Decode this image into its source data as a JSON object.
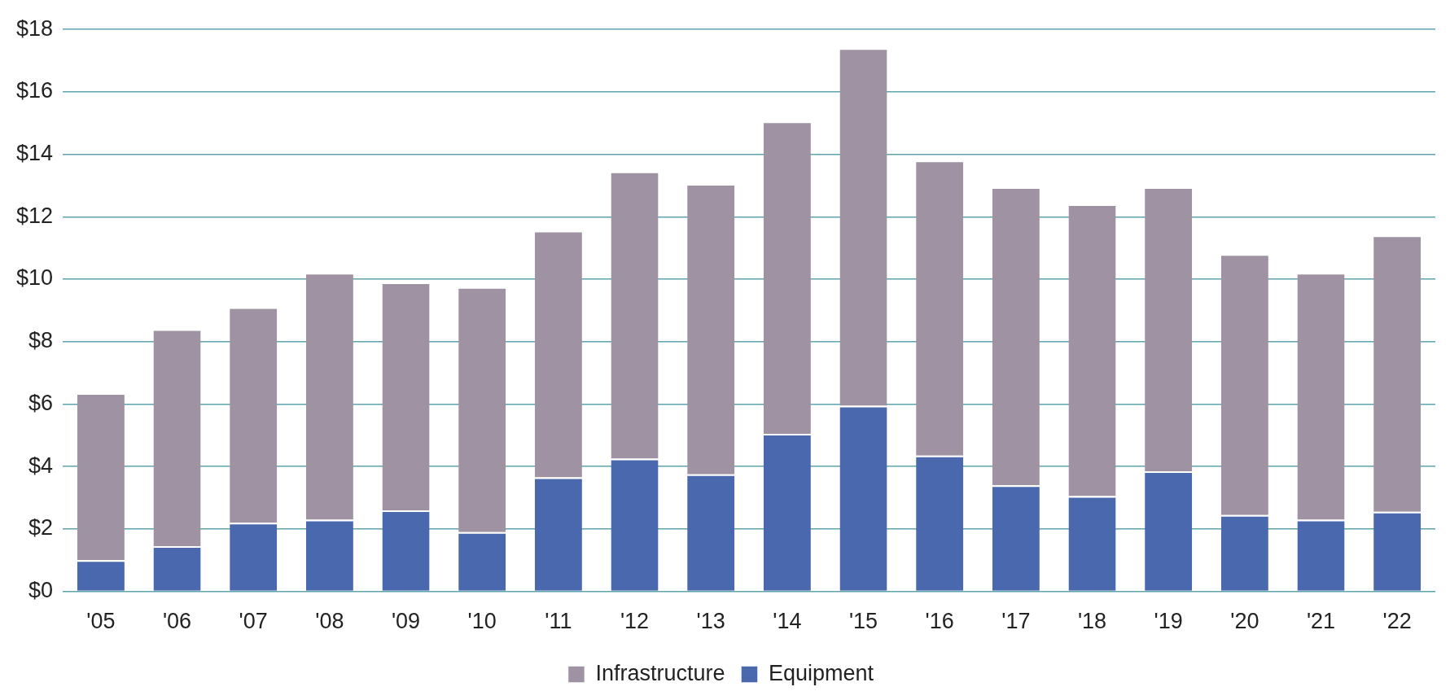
{
  "chart_data": {
    "type": "bar",
    "stacked": true,
    "categories": [
      "'05",
      "'06",
      "'07",
      "'08",
      "'09",
      "'10",
      "'11",
      "'12",
      "'13",
      "'14",
      "'15",
      "'16",
      "'17",
      "'18",
      "'19",
      "'20",
      "'21",
      "'22"
    ],
    "series": [
      {
        "name": "Equipment",
        "color": "#4a68ae",
        "values": [
          1.0,
          1.45,
          2.2,
          2.3,
          2.6,
          1.9,
          3.65,
          4.25,
          3.75,
          5.05,
          5.95,
          4.35,
          3.4,
          3.05,
          3.85,
          2.45,
          2.3,
          2.55
        ]
      },
      {
        "name": "Infrastructure",
        "color": "#9e92a3",
        "values": [
          5.35,
          6.95,
          6.9,
          7.9,
          7.3,
          7.85,
          7.9,
          9.2,
          9.3,
          10.0,
          11.45,
          9.45,
          9.55,
          9.35,
          9.1,
          8.35,
          7.9,
          8.85
        ]
      }
    ],
    "ylim": [
      0,
      18
    ],
    "yticks": [
      {
        "value": 0,
        "label": "$0"
      },
      {
        "value": 2,
        "label": "$2"
      },
      {
        "value": 4,
        "label": "$4"
      },
      {
        "value": 6,
        "label": "$6"
      },
      {
        "value": 8,
        "label": "$8"
      },
      {
        "value": 10,
        "label": "$10"
      },
      {
        "value": 12,
        "label": "$12"
      },
      {
        "value": 14,
        "label": "$14"
      },
      {
        "value": 16,
        "label": "$16"
      },
      {
        "value": 18,
        "label": "$18"
      }
    ],
    "grid": "y",
    "legend": "bottom"
  }
}
